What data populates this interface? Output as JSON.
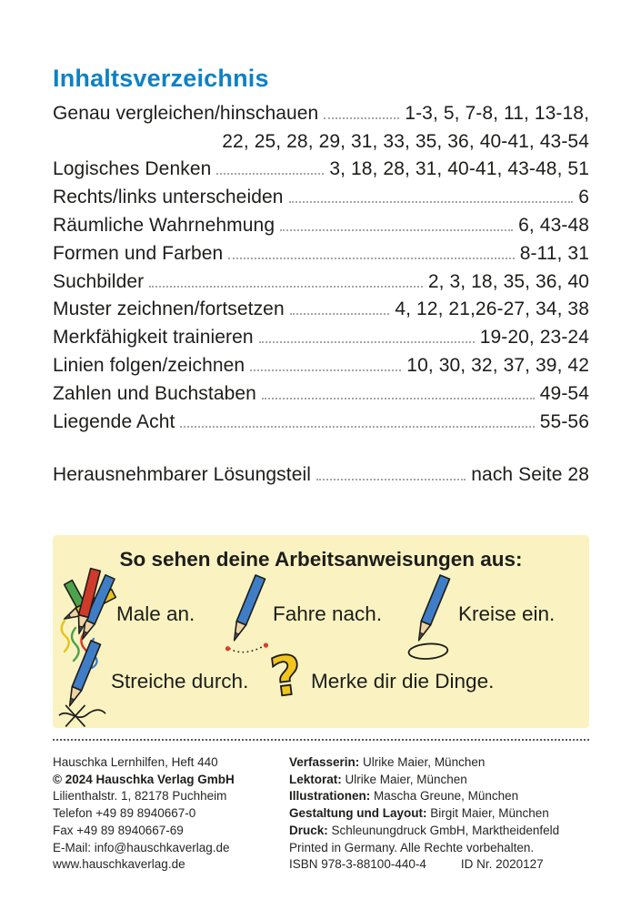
{
  "page": {
    "title": "Inhaltsverzeichnis",
    "accent_color": "#0e81c4"
  },
  "toc": {
    "entries": [
      {
        "label": "Genau vergleichen/hinschauen",
        "pages": "1-3, 5, 7-8, 11, 13-18,",
        "pages2": "22, 25, 28, 29, 31, 33, 35, 36, 40-41, 43-54"
      },
      {
        "label": "Logisches Denken",
        "pages": "3, 18, 28, 31, 40-41, 43-48, 51"
      },
      {
        "label": "Rechts/links unterscheiden",
        "pages": "6"
      },
      {
        "label": "Räumliche Wahrnehmung",
        "pages": "6, 43-48"
      },
      {
        "label": "Formen und Farben",
        "pages": "8-11, 31"
      },
      {
        "label": "Suchbilder",
        "pages": "2, 3, 18, 35, 36, 40"
      },
      {
        "label": "Muster zeichnen/fortsetzen",
        "pages": "4, 12, 21,26-27, 34, 38"
      },
      {
        "label": "Merkfähigkeit trainieren",
        "pages": "19-20, 23-24"
      },
      {
        "label": "Linien folgen/zeichnen",
        "pages": "10, 30, 32, 37, 39, 42"
      },
      {
        "label": "Zahlen und Buchstaben",
        "pages": "49-54"
      },
      {
        "label": "Liegende Acht",
        "pages": "55-56"
      }
    ],
    "extra_entry": {
      "label": "Herausnehmbarer Lösungsteil",
      "pages": "nach Seite 28"
    }
  },
  "instruction_box": {
    "title": "So sehen deine Arbeitsanweisungen aus:",
    "background": "#faf3c1",
    "items": [
      {
        "icon": "colored-pencils-icon",
        "label": "Male an."
      },
      {
        "icon": "pencil-trace-icon",
        "label": "Fahre nach."
      },
      {
        "icon": "pencil-circle-icon",
        "label": "Kreise ein."
      },
      {
        "icon": "pencil-strike-icon",
        "label": "Streiche durch."
      },
      {
        "icon": "question-mark-icon",
        "label": "Merke dir die Dinge."
      }
    ],
    "pencil_color": "#3f7ec7",
    "mark_color": "#d8402c",
    "question_color": "#f2c51d"
  },
  "footer": {
    "left": [
      {
        "text": "Hauschka Lernhilfen, Heft 440",
        "bold": false
      },
      {
        "text": "© 2024 Hauschka Verlag GmbH",
        "bold": true
      },
      {
        "text": "Lilienthalstr. 1, 82178 Puchheim",
        "bold": false
      },
      {
        "text": "Telefon +49 89 8940667-0",
        "bold": false
      },
      {
        "text": "Fax +49 89 8940667-69",
        "bold": false
      },
      {
        "text": "E-Mail: info@hauschkaverlag.de",
        "bold": false
      },
      {
        "text": "www.hauschkaverlag.de",
        "bold": false
      }
    ],
    "right": [
      {
        "label": "Verfasserin:",
        "text": " Ulrike Maier, München"
      },
      {
        "label": "Lektorat:",
        "text": " Ulrike Maier, München"
      },
      {
        "label": "Illustrationen:",
        "text": " Mascha Greune, München"
      },
      {
        "label": "Gestaltung und Layout:",
        "text": " Birgit Maier, München"
      },
      {
        "label": "Druck:",
        "text": " Schleunungdruck GmbH, Marktheidenfeld"
      },
      {
        "label": "",
        "text": "Printed in Germany. Alle Rechte vorbehalten."
      },
      {
        "label": "",
        "text": "ISBN 978-3-88100-440-4",
        "text2": "ID Nr. 2020127"
      }
    ]
  }
}
